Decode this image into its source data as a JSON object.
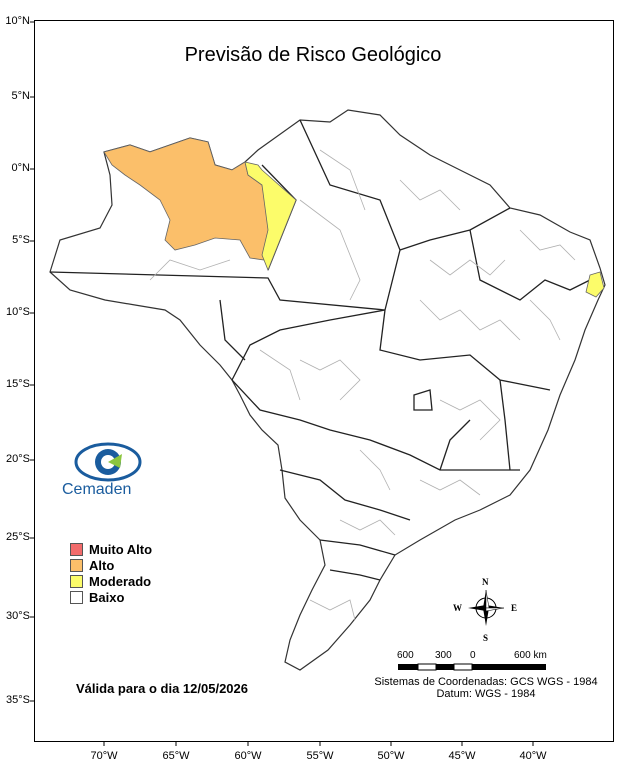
{
  "title": "Previsão de Risco Geológico",
  "latitude_labels": [
    "10°N",
    "5°N",
    "0°N",
    "5°S",
    "10°S",
    "15°S",
    "20°S",
    "25°S",
    "30°S",
    "35°S"
  ],
  "longitude_labels": [
    "70°W",
    "65°W",
    "60°W",
    "55°W",
    "50°W",
    "45°W",
    "40°W"
  ],
  "legend": {
    "items": [
      {
        "label": "Muito Alto",
        "color": "#f26b6b"
      },
      {
        "label": "Alto",
        "color": "#fbbf6a"
      },
      {
        "label": "Moderado",
        "color": "#fcfc6a"
      },
      {
        "label": "Baixo",
        "color": "#ffffff"
      }
    ]
  },
  "valid_date": "Válida para o dia 12/05/2026",
  "scale_bar": {
    "labels": [
      "600",
      "300",
      "0",
      "600 km"
    ]
  },
  "compass": {
    "n": "N",
    "s": "S",
    "e": "E",
    "w": "W"
  },
  "coordinate_system": {
    "line1": "Sistemas de Coordenadas: GCS WGS - 1984",
    "line2": "Datum: WGS - 1984"
  },
  "logo": {
    "name": "Cemaden",
    "colors": {
      "blue": "#1a5c9e",
      "green": "#8cc63f"
    }
  },
  "colors": {
    "border": "#000000",
    "municipal": "#b0b0b0",
    "state": "#222222"
  }
}
